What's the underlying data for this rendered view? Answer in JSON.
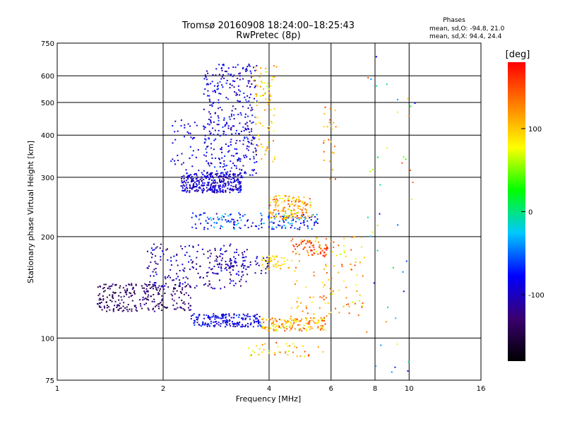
{
  "chart_data": {
    "type": "scatter",
    "title": "Tromsø 20160908 18:24:00–18:25:43",
    "subtitle": "RwPretec (8p)",
    "xlabel": "Frequency [MHz]",
    "ylabel": "Stationary phase Virtual Height [km]",
    "x_scale": "log",
    "y_scale": "log",
    "xlim": [
      1,
      16
    ],
    "ylim": [
      75,
      750
    ],
    "x_ticks": [
      "1",
      "2",
      "4",
      "6",
      "8",
      "10",
      "16"
    ],
    "x_tick_values": [
      1,
      2,
      4,
      6,
      8,
      10,
      16
    ],
    "y_ticks": [
      "75",
      "100",
      "200",
      "300",
      "400",
      "500",
      "600",
      "750"
    ],
    "y_tick_values": [
      75,
      100,
      200,
      300,
      400,
      500,
      600,
      750
    ],
    "grid": true,
    "phase_box": {
      "title": "Phases",
      "line1": "mean, sd,O: -94.8, 21.0",
      "line2": "mean, sd,X:  94.4, 24.4"
    },
    "colorbar": {
      "unit": "[deg]",
      "ticks": [
        "100",
        "0",
        "-100"
      ],
      "tick_values": [
        100,
        0,
        -100
      ],
      "range": [
        -180,
        180
      ],
      "colors": [
        "#000000",
        "#3a0070",
        "#0000ff",
        "#00c8ff",
        "#00ff00",
        "#ffff00",
        "#ff8000",
        "#ff0000"
      ]
    },
    "point_density_note_values": 0,
    "clusters": [
      {
        "f": [
          2.25,
          3.35
        ],
        "h": [
          270,
          310
        ],
        "phase": [
          -120,
          -70
        ],
        "n": 320
      },
      {
        "f": [
          2.6,
          3.7
        ],
        "h": [
          300,
          650
        ],
        "phase": [
          -120,
          -60
        ],
        "n": 380
      },
      {
        "f": [
          3.6,
          4.2
        ],
        "h": [
          330,
          650
        ],
        "phase": [
          60,
          140
        ],
        "n": 80
      },
      {
        "f": [
          2.1,
          2.6
        ],
        "h": [
          310,
          450
        ],
        "phase": [
          -110,
          -70
        ],
        "n": 40
      },
      {
        "f": [
          2.4,
          5.5
        ],
        "h": [
          210,
          235
        ],
        "phase": [
          -110,
          -20
        ],
        "n": 180
      },
      {
        "f": [
          4.0,
          5.3
        ],
        "h": [
          225,
          265
        ],
        "phase": [
          60,
          160
        ],
        "n": 150
      },
      {
        "f": [
          4.6,
          5.9
        ],
        "h": [
          175,
          195
        ],
        "phase": [
          130,
          180
        ],
        "n": 60
      },
      {
        "f": [
          1.3,
          2.4
        ],
        "h": [
          120,
          145
        ],
        "phase": [
          -160,
          -110
        ],
        "n": 260
      },
      {
        "f": [
          1.8,
          3.5
        ],
        "h": [
          140,
          190
        ],
        "phase": [
          -140,
          -70
        ],
        "n": 200
      },
      {
        "f": [
          2.8,
          4.0
        ],
        "h": [
          155,
          175
        ],
        "phase": [
          -140,
          -80
        ],
        "n": 60
      },
      {
        "f": [
          3.8,
          4.6
        ],
        "h": [
          160,
          175
        ],
        "phase": [
          70,
          120
        ],
        "n": 40
      },
      {
        "f": [
          2.4,
          3.8
        ],
        "h": [
          108,
          118
        ],
        "phase": [
          -110,
          -60
        ],
        "n": 180
      },
      {
        "f": [
          3.8,
          5.8
        ],
        "h": [
          105,
          115
        ],
        "phase": [
          60,
          160
        ],
        "n": 160
      },
      {
        "f": [
          4.6,
          7.5
        ],
        "h": [
          115,
          200
        ],
        "phase": [
          60,
          160
        ],
        "n": 120
      },
      {
        "f": [
          3.5,
          6.0
        ],
        "h": [
          88,
          97
        ],
        "phase": [
          60,
          160
        ],
        "n": 40
      },
      {
        "f": [
          7.5,
          10.5
        ],
        "h": [
          78,
          700
        ],
        "phase": [
          -100,
          160
        ],
        "n": 45
      },
      {
        "f": [
          5.7,
          6.2
        ],
        "h": [
          290,
          500
        ],
        "phase": [
          90,
          170
        ],
        "n": 25
      }
    ]
  }
}
